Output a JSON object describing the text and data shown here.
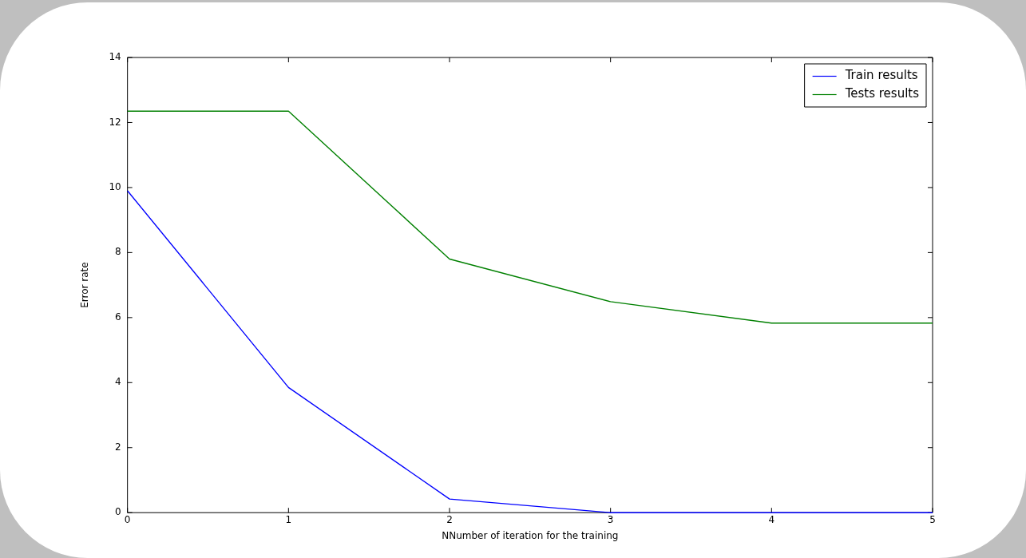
{
  "chart_data": {
    "type": "line",
    "xlabel": "NNumber of iteration for the training",
    "ylabel": "Error rate",
    "x": [
      0,
      1,
      2,
      3,
      4,
      5
    ],
    "series": [
      {
        "name": "Train results",
        "color": "#0000ff",
        "values": [
          9.9,
          3.85,
          0.42,
          0,
          0,
          0
        ]
      },
      {
        "name": "Tests results",
        "color": "#008000",
        "values": [
          12.35,
          12.35,
          7.8,
          6.49,
          5.83,
          5.83
        ]
      }
    ],
    "xlim": [
      0,
      5
    ],
    "xticks": [
      0,
      1,
      2,
      3,
      4,
      5
    ],
    "ylim": [
      0,
      14
    ],
    "yticks": [
      0,
      2,
      4,
      6,
      8,
      10,
      12,
      14
    ],
    "grid": false,
    "legend": "top right",
    "marker": "none",
    "line_style": "solid"
  }
}
